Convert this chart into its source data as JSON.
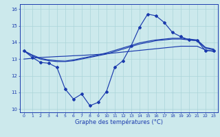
{
  "title": "Graphe des températures (°C)",
  "bg_color": "#cce9ec",
  "line_color": "#1a3aad",
  "x_hours": [
    0,
    1,
    2,
    3,
    4,
    5,
    6,
    7,
    8,
    9,
    10,
    11,
    12,
    13,
    14,
    15,
    16,
    17,
    18,
    19,
    20,
    21,
    22,
    23
  ],
  "temp_jagged": [
    13.5,
    13.1,
    12.8,
    12.75,
    12.5,
    11.2,
    10.6,
    10.9,
    10.2,
    10.4,
    11.05,
    12.5,
    12.9,
    13.8,
    14.9,
    15.7,
    15.6,
    15.2,
    14.6,
    14.35,
    14.15,
    14.1,
    13.5,
    13.5
  ],
  "temp_upper1": [
    13.5,
    13.2,
    13.0,
    12.9,
    12.85,
    12.85,
    12.9,
    13.0,
    13.1,
    13.2,
    13.3,
    13.45,
    13.6,
    13.75,
    13.9,
    14.0,
    14.1,
    14.15,
    14.2,
    14.2,
    14.15,
    14.1,
    13.65,
    13.55
  ],
  "temp_upper2": [
    13.5,
    13.25,
    13.05,
    12.95,
    12.9,
    12.88,
    12.95,
    13.05,
    13.15,
    13.25,
    13.37,
    13.52,
    13.67,
    13.82,
    13.97,
    14.07,
    14.15,
    14.2,
    14.25,
    14.25,
    14.2,
    14.15,
    13.7,
    13.6
  ],
  "temp_linear": [
    13.0,
    13.05,
    13.1,
    13.12,
    13.15,
    13.17,
    13.2,
    13.22,
    13.25,
    13.28,
    13.32,
    13.37,
    13.42,
    13.47,
    13.52,
    13.57,
    13.62,
    13.67,
    13.72,
    13.77,
    13.77,
    13.77,
    13.55,
    13.45
  ],
  "ylim": [
    9.8,
    16.3
  ],
  "yticks": [
    10,
    11,
    12,
    13,
    14,
    15,
    16
  ],
  "xticks": [
    0,
    1,
    2,
    3,
    4,
    5,
    6,
    7,
    8,
    9,
    10,
    11,
    12,
    13,
    14,
    15,
    16,
    17,
    18,
    19,
    20,
    21,
    22,
    23
  ],
  "grid_color": "#aad4d8",
  "tick_label_color": "#1a3aad",
  "xlabel_color": "#1a3aad",
  "xlabel_fontsize": 6.0,
  "tick_fontsize": 4.5
}
